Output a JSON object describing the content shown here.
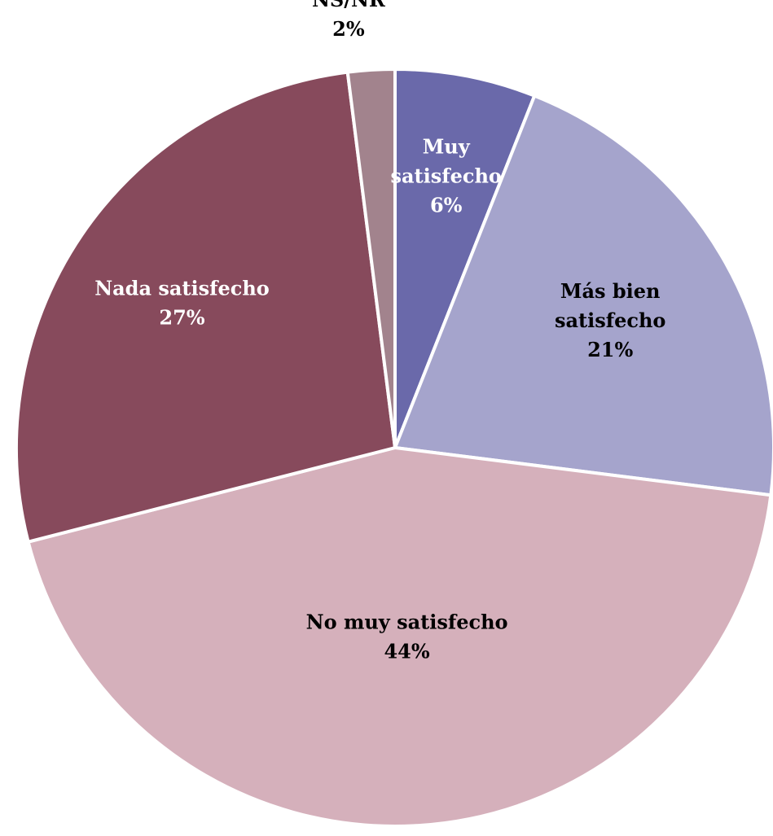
{
  "chart_data": {
    "type": "pie",
    "title": "",
    "start_angle_deg": 0,
    "direction": "clockwise",
    "label_text_color": "#000000",
    "slices": [
      {
        "name": "Muy satisfecho",
        "label_lines": [
          "Muy",
          "satisfecho"
        ],
        "value": 6,
        "percent_label": "6%",
        "color": "#6a69aa",
        "label_color": "#ffffff"
      },
      {
        "name": "Más bien satisfecho",
        "label_lines": [
          "Más bien",
          "satisfecho"
        ],
        "value": 21,
        "percent_label": "21%",
        "color": "#a5a4cc",
        "label_color": "#000000"
      },
      {
        "name": "No muy satisfecho",
        "label_lines": [
          "No muy satisfecho"
        ],
        "value": 44,
        "percent_label": "44%",
        "color": "#d5b0bb",
        "label_color": "#000000"
      },
      {
        "name": "Nada satisfecho",
        "label_lines": [
          "Nada satisfecho"
        ],
        "value": 27,
        "percent_label": "27%",
        "color": "#874a5c",
        "label_color": "#ffffff"
      },
      {
        "name": "NS/NR",
        "label_lines": [
          "NS/NR"
        ],
        "value": 2,
        "percent_label": "2%",
        "color": "#a2838d",
        "label_color": "#000000"
      }
    ]
  }
}
